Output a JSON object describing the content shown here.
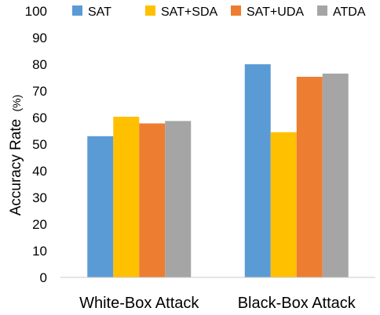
{
  "chart_data": {
    "type": "bar",
    "categories": [
      "White-Box Attack",
      "Black-Box Attack"
    ],
    "series": [
      {
        "name": "SAT",
        "color": "#5B9BD5",
        "values": [
          53,
          80
        ]
      },
      {
        "name": "SAT+SDA",
        "color": "#FFC000",
        "values": [
          60.3,
          54.5
        ]
      },
      {
        "name": "SAT+UDA",
        "color": "#ED7D31",
        "values": [
          57.8,
          75.3
        ]
      },
      {
        "name": "ATDA",
        "color": "#A5A5A5",
        "values": [
          58.7,
          76.5
        ]
      }
    ],
    "title": "",
    "xlabel": "",
    "ylabel": "Accuracy Rate",
    "ylabel_unit": "(%)",
    "ylim": [
      0,
      100
    ],
    "yticks": [
      0,
      10,
      20,
      30,
      40,
      50,
      60,
      70,
      80,
      90,
      100
    ],
    "grid": false,
    "legend_position": "top"
  }
}
